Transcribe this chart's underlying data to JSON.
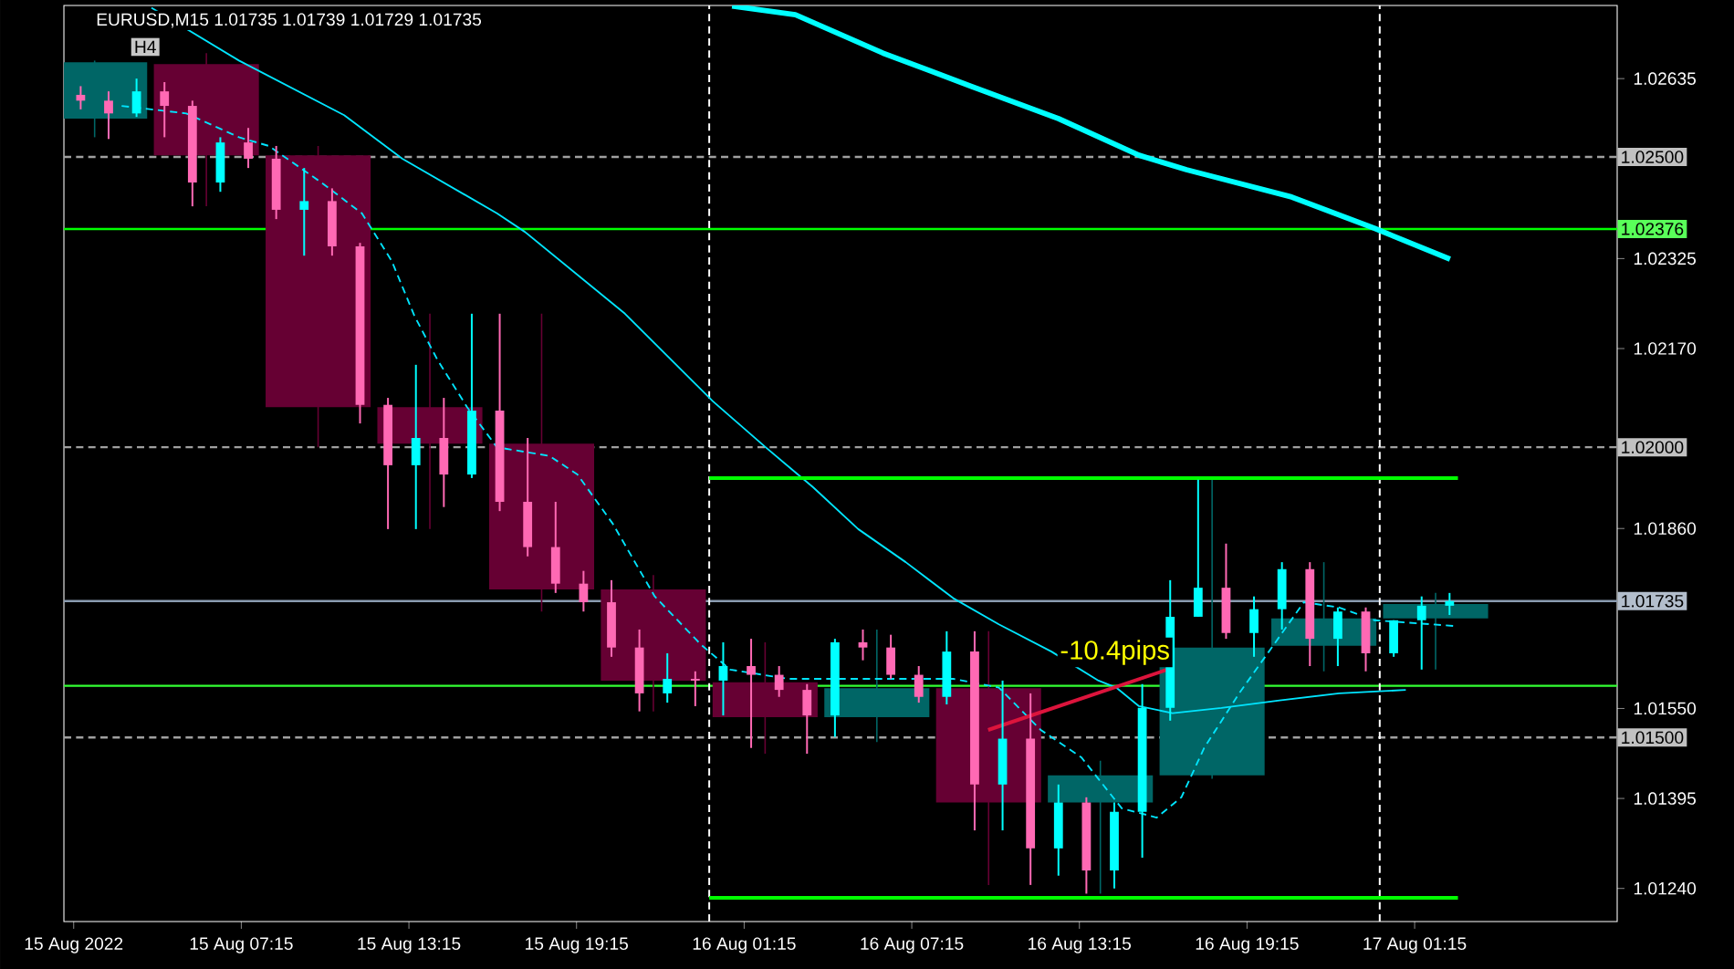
{
  "chart_data": {
    "type": "candlestick",
    "title": "EURUSD,M15  1.01735 1.01739 1.01729 1.01735",
    "xlim": [
      "2022-08-15T00:54",
      "2022-08-17T08:30"
    ],
    "ylim": [
      1.01183,
      1.02761
    ],
    "xticks": [
      {
        "value": "2022-08-15T01:15",
        "label": "15 Aug 2022"
      },
      {
        "value": "2022-08-15T07:15",
        "label": "15 Aug 07:15"
      },
      {
        "value": "2022-08-15T13:15",
        "label": "15 Aug 13:15"
      },
      {
        "value": "2022-08-15T19:15",
        "label": "15 Aug 19:15"
      },
      {
        "value": "2022-08-16T01:15",
        "label": "16 Aug 01:15"
      },
      {
        "value": "2022-08-16T07:15",
        "label": "16 Aug 07:15"
      },
      {
        "value": "2022-08-16T13:15",
        "label": "16 Aug 13:15"
      },
      {
        "value": "2022-08-16T19:15",
        "label": "16 Aug 19:15"
      },
      {
        "value": "2022-08-17T01:15",
        "label": "17 Aug 01:15"
      }
    ],
    "yticks": [
      1.02635,
      1.02325,
      {
        "value": 1.0217,
        "label": "1.02170"
      },
      {
        "value": 1.0186,
        "label": "1.01860"
      },
      {
        "value": 1.0155,
        "label": "1.01550"
      },
      1.01395,
      {
        "value": 1.0124,
        "label": "1.01240"
      }
    ],
    "ref_lines": [
      {
        "axis": "y",
        "value": 1.025,
        "label": "1.02500",
        "color": "#a0a0a0",
        "line_style": "dashed"
      },
      {
        "axis": "y",
        "value": 1.02,
        "label": "1.02000",
        "color": "#a0a0a0",
        "line_style": "dashed"
      },
      {
        "axis": "y",
        "value": 1.015,
        "label": "1.01500",
        "color": "#a0a0a0",
        "line_style": "dashed"
      },
      {
        "axis": "y",
        "value": 1.02376,
        "label": "1.02376",
        "color": "#00ff00",
        "line_style": "solid"
      },
      {
        "axis": "y",
        "value": 1.01735,
        "label": "1.01735",
        "color": "#8a9bb0",
        "line_style": "solid"
      },
      {
        "axis": "y",
        "value": 1.01589,
        "color": "#33ff33",
        "line_style": "solid"
      },
      {
        "axis": "x",
        "value": "2022-08-16T00:00",
        "color": "#ffffff",
        "line_style": "dashed"
      },
      {
        "axis": "x",
        "value": "2022-08-17T00:00",
        "color": "#ffffff",
        "line_style": "dashed"
      }
    ],
    "annotations": [
      "H4",
      "-10.4pips"
    ],
    "series": [
      {
        "x": [
          "2022-08-15T02:00",
          "2022-08-15T06:00",
          "2022-08-15T10:00",
          "2022-08-15T14:00",
          "2022-08-15T18:00",
          "2022-08-15T22:00",
          "2022-08-16T02:00",
          "2022-08-16T06:00",
          "2022-08-16T10:00",
          "2022-08-16T14:00",
          "2022-08-16T18:00",
          "2022-08-16T22:00",
          "2022-08-17T02:00"
        ],
        "ohlc": [
          [
            1.02566,
            1.02666,
            1.02534,
            1.02663
          ],
          [
            1.0266,
            1.02679,
            1.02415,
            1.02503
          ],
          [
            1.02503,
            1.02519,
            1.02,
            1.02069
          ],
          [
            1.02069,
            1.0223,
            1.01859,
            1.02006
          ],
          [
            1.02006,
            1.0223,
            1.01717,
            1.01755
          ],
          [
            1.01755,
            1.0178,
            1.01545,
            1.01598
          ],
          [
            1.01595,
            1.01664,
            1.01472,
            1.01535
          ],
          [
            1.01535,
            1.01686,
            1.01492,
            1.01585
          ],
          [
            1.01585,
            1.01683,
            1.01246,
            1.01388
          ],
          [
            1.01388,
            1.0146,
            1.01231,
            1.01435
          ],
          [
            1.01435,
            1.01944,
            1.01429,
            1.01655
          ],
          [
            1.01658,
            1.01802,
            1.01614,
            1.01705
          ],
          [
            1.01705,
            1.01749,
            1.01617,
            1.0173
          ]
        ],
        "colors": [
          "#006666",
          "#660033",
          "#660033",
          "#660033",
          "#660033",
          "#660033",
          "#660033",
          "#006666",
          "#660033",
          "#006666",
          "#006666",
          "#006666",
          "#006666"
        ]
      },
      {
        "type": "line",
        "color": "#00ffff",
        "line_style": "solid",
        "x": [
          "2022-08-16T00:49",
          "2022-08-16T03:05",
          "2022-08-16T06:13",
          "2022-08-16T09:22",
          "2022-08-16T12:30",
          "2022-08-16T15:23",
          "2022-08-16T17:05",
          "2022-08-16T20:51",
          "2022-08-16T23:49",
          "2022-08-17T02:31"
        ],
        "values": [
          1.0276,
          1.02745,
          1.02679,
          1.02622,
          1.02566,
          1.02503,
          1.02478,
          1.02431,
          1.02377,
          1.02324
        ]
      },
      {
        "type": "line",
        "color": "#00e5ff",
        "line_style": "solid",
        "x": [
          "2022-08-15T04:02",
          "2022-08-15T07:10",
          "2022-08-15T10:56",
          "2022-08-15T13:01",
          "2022-08-15T16:24",
          "2022-08-15T17:24",
          "2022-08-15T20:59",
          "2022-08-16T00:08",
          "2022-08-16T02:01",
          "2022-08-16T03:43",
          "2022-08-16T05:20",
          "2022-08-16T07:02",
          "2022-08-16T08:44",
          "2022-08-16T10:22",
          "2022-08-16T12:15",
          "2022-08-16T13:56",
          "2022-08-16T14:34",
          "2022-08-16T15:23",
          "2022-08-16T16:35",
          "2022-08-16T18:20",
          "2022-08-16T20:25",
          "2022-08-16T22:33",
          "2022-08-17T00:56"
        ],
        "values": [
          1.02757,
          1.02666,
          1.02572,
          1.02497,
          1.02403,
          1.02371,
          1.0223,
          1.02079,
          1.02,
          1.01931,
          1.01859,
          1.01802,
          1.0174,
          1.01695,
          1.01648,
          1.01598,
          1.01586,
          1.01554,
          1.01542,
          1.01551,
          1.01564,
          1.01576,
          1.01582
        ]
      },
      {
        "type": "line",
        "color": "#00e5ff",
        "line_style": "dashed",
        "x": [
          "2022-08-15T02:58",
          "2022-08-15T05:17",
          "2022-08-15T07:10",
          "2022-08-15T08:14",
          "2022-08-15T10:07",
          "2022-08-15T11:34",
          "2022-08-15T12:38",
          "2022-08-15T13:27",
          "2022-08-15T14:16",
          "2022-08-15T15:20",
          "2022-08-15T16:24",
          "2022-08-15T18:17",
          "2022-08-15T19:17",
          "2022-08-15T20:33",
          "2022-08-15T22:03",
          "2022-08-15T23:41",
          "2022-08-16T00:45",
          "2022-08-16T02:50",
          "2022-08-16T06:13",
          "2022-08-16T08:44",
          "2022-08-16T10:22",
          "2022-08-16T11:52",
          "2022-08-16T13:19",
          "2022-08-16T14:46",
          "2022-08-16T16:01",
          "2022-08-16T16:54",
          "2022-08-16T17:43",
          "2022-08-16T18:58",
          "2022-08-16T20:02",
          "2022-08-16T21:17",
          "2022-08-16T22:33",
          "2022-08-16T23:49",
          "2022-08-17T02:42"
        ],
        "values": [
          1.02588,
          1.02575,
          1.02534,
          1.02519,
          1.02456,
          1.02403,
          1.02321,
          1.02226,
          1.02151,
          1.02069,
          1.02,
          1.01985,
          1.01953,
          1.01868,
          1.01743,
          1.01661,
          1.01617,
          1.01601,
          1.01601,
          1.01601,
          1.01586,
          1.01513,
          1.01466,
          1.01378,
          1.01362,
          1.01397,
          1.01482,
          1.01576,
          1.01648,
          1.01733,
          1.01724,
          1.01702,
          1.01692
        ]
      },
      {
        "type": "line",
        "color": "#00ff00",
        "line_style": "solid",
        "x": [
          "2022-08-16T00:00",
          "2022-08-17T02:48"
        ],
        "values": [
          1.01947,
          1.01947
        ]
      },
      {
        "type": "line",
        "color": "#00ff00",
        "line_style": "solid",
        "x": [
          "2022-08-16T00:00",
          "2022-08-17T02:48"
        ],
        "values": [
          1.01224,
          1.01224
        ]
      },
      {
        "type": "line",
        "color": "#dc143c",
        "line_style": "solid",
        "x": [
          "2022-08-16T09:59",
          "2022-08-16T16:35"
        ],
        "values": [
          1.01513,
          1.0162
        ]
      },
      {
        "x": [
          "2022-08-15T01:30",
          "2022-08-15T02:30",
          "2022-08-15T03:30",
          "2022-08-15T04:30",
          "2022-08-15T05:30",
          "2022-08-15T06:30",
          "2022-08-15T07:30",
          "2022-08-15T08:30",
          "2022-08-15T09:30",
          "2022-08-15T10:30",
          "2022-08-15T11:30",
          "2022-08-15T12:30",
          "2022-08-15T13:30",
          "2022-08-15T14:30",
          "2022-08-15T15:30",
          "2022-08-15T16:30",
          "2022-08-15T17:30",
          "2022-08-15T18:30",
          "2022-08-15T19:30",
          "2022-08-15T20:30",
          "2022-08-15T21:30",
          "2022-08-15T22:30",
          "2022-08-15T23:30",
          "2022-08-16T00:30",
          "2022-08-16T01:30",
          "2022-08-16T02:30",
          "2022-08-16T03:30",
          "2022-08-16T04:30",
          "2022-08-16T05:30",
          "2022-08-16T06:30",
          "2022-08-16T07:30",
          "2022-08-16T08:30",
          "2022-08-16T09:30",
          "2022-08-16T10:30",
          "2022-08-16T11:30",
          "2022-08-16T12:30",
          "2022-08-16T13:30",
          "2022-08-16T14:30",
          "2022-08-16T15:30",
          "2022-08-16T16:30",
          "2022-08-16T17:30",
          "2022-08-16T18:30",
          "2022-08-16T19:30",
          "2022-08-16T20:30",
          "2022-08-16T21:30",
          "2022-08-16T22:30",
          "2022-08-16T23:30",
          "2022-08-17T00:30",
          "2022-08-17T01:30",
          "2022-08-17T02:30"
        ],
        "ohlc": [
          [
            1.02607,
            1.02622,
            1.02582,
            1.02597
          ],
          [
            1.02597,
            1.02613,
            1.02531,
            1.02575
          ],
          [
            1.02575,
            1.02635,
            1.02569,
            1.02613
          ],
          [
            1.02613,
            1.02629,
            1.02534,
            1.02588
          ],
          [
            1.02588,
            1.02597,
            1.02415,
            1.02456
          ],
          [
            1.02456,
            1.02534,
            1.0244,
            1.02525
          ],
          [
            1.02525,
            1.0255,
            1.02481,
            1.02497
          ],
          [
            1.02497,
            1.02519,
            1.02393,
            1.02409
          ],
          [
            1.02409,
            1.02481,
            1.0233,
            1.02424
          ],
          [
            1.02424,
            1.02446,
            1.0233,
            1.02346
          ],
          [
            1.02346,
            1.02352,
            1.02041,
            1.02073
          ],
          [
            1.02073,
            1.02085,
            1.01859,
            1.01969
          ],
          [
            1.01969,
            1.02142,
            1.01859,
            1.02016
          ],
          [
            1.02016,
            1.02085,
            1.01897,
            1.01953
          ],
          [
            1.01953,
            1.0223,
            1.01947,
            1.02063
          ],
          [
            1.02063,
            1.0223,
            1.0189,
            1.01906
          ],
          [
            1.01906,
            1.02016,
            1.01812,
            1.01828
          ],
          [
            1.01828,
            1.01906,
            1.01749,
            1.01765
          ],
          [
            1.01765,
            1.01787,
            1.01717,
            1.01733
          ],
          [
            1.01733,
            1.01771,
            1.01639,
            1.01655
          ],
          [
            1.01655,
            1.01686,
            1.01545,
            1.01576
          ],
          [
            1.01576,
            1.01645,
            1.0156,
            1.01601
          ],
          [
            1.01601,
            1.01614,
            1.01554,
            1.01598
          ],
          [
            1.01598,
            1.01664,
            1.01538,
            1.01623
          ],
          [
            1.01623,
            1.0167,
            1.01482,
            1.01608
          ],
          [
            1.01608,
            1.01623,
            1.0157,
            1.01582
          ],
          [
            1.01582,
            1.01592,
            1.01472,
            1.01538
          ],
          [
            1.01538,
            1.0167,
            1.01501,
            1.01664
          ],
          [
            1.01664,
            1.01686,
            1.01633,
            1.01655
          ],
          [
            1.01655,
            1.01677,
            1.01601,
            1.01608
          ],
          [
            1.01608,
            1.01623,
            1.0156,
            1.0157
          ],
          [
            1.0157,
            1.01683,
            1.01557,
            1.01648
          ],
          [
            1.01648,
            1.01683,
            1.0134,
            1.01419
          ],
          [
            1.01419,
            1.01598,
            1.0134,
            1.01498
          ],
          [
            1.01498,
            1.01576,
            1.01246,
            1.01309
          ],
          [
            1.01309,
            1.01419,
            1.01262,
            1.01388
          ],
          [
            1.01388,
            1.01397,
            1.01231,
            1.01271
          ],
          [
            1.01271,
            1.01388,
            1.0124,
            1.01372
          ],
          [
            1.01372,
            1.01592,
            1.01293,
            1.01551
          ],
          [
            1.01551,
            1.01771,
            1.01529,
            1.01708
          ],
          [
            1.01708,
            1.01944,
            1.01708,
            1.01758
          ],
          [
            1.01758,
            1.01834,
            1.0167,
            1.0168
          ],
          [
            1.0168,
            1.01743,
            1.01639,
            1.01721
          ],
          [
            1.01721,
            1.01802,
            1.01686,
            1.0179
          ],
          [
            1.0179,
            1.01802,
            1.01623,
            1.0167
          ],
          [
            1.0167,
            1.01724,
            1.01623,
            1.01717
          ],
          [
            1.01717,
            1.01724,
            1.01614,
            1.01645
          ],
          [
            1.01645,
            1.01702,
            1.01639,
            1.01702
          ],
          [
            1.01702,
            1.01743,
            1.01617,
            1.01727
          ],
          [
            1.01727,
            1.01749,
            1.01711,
            1.01735
          ]
        ],
        "colors": [
          "#ff69b4",
          "#ff69b4",
          "#00ffff",
          "#ff69b4",
          "#ff69b4",
          "#00ffff",
          "#ff69b4",
          "#ff69b4",
          "#00ffff",
          "#ff69b4",
          "#ff69b4",
          "#ff69b4",
          "#00ffff",
          "#ff69b4",
          "#00ffff",
          "#ff69b4",
          "#ff69b4",
          "#ff69b4",
          "#ff69b4",
          "#ff69b4",
          "#ff69b4",
          "#00ffff",
          "#ff69b4",
          "#00ffff",
          "#ff69b4",
          "#ff69b4",
          "#ff69b4",
          "#00ffff",
          "#ff69b4",
          "#ff69b4",
          "#ff69b4",
          "#00ffff",
          "#ff69b4",
          "#00ffff",
          "#ff69b4",
          "#00ffff",
          "#ff69b4",
          "#00ffff",
          "#00ffff",
          "#00ffff",
          "#00ffff",
          "#ff69b4",
          "#00ffff",
          "#00ffff",
          "#ff69b4",
          "#00ffff",
          "#ff69b4",
          "#00ffff",
          "#00ffff",
          "#00ffff"
        ]
      }
    ]
  }
}
